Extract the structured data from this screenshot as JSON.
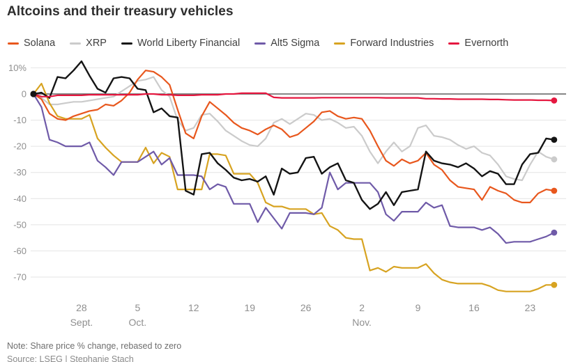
{
  "title": "Altcoins and their treasury vehicles",
  "note": "Note: Share price % change, rebased to zero",
  "source": "Source: LSEG | Stephanie Stach",
  "colors": {
    "grid": "#e4e4e4",
    "zero_line": "#5f5f5f",
    "axis_label": "#8f8f8f",
    "title_text": "#2d2d2d",
    "legend_text": "#3f3f3f",
    "note_text": "#6e6e6e"
  },
  "chart_data": {
    "type": "line",
    "title": "Altcoins and their treasury vehicles",
    "xlabel": "",
    "ylabel": "Share price % change, rebased to zero",
    "x_unit": "days (Sep 22 - Nov 26)",
    "grid": true,
    "legend_position": "top",
    "ylim": [
      -78,
      13
    ],
    "y_ticks": [
      {
        "value": 10,
        "label": "10%"
      },
      {
        "value": 0,
        "label": "0"
      },
      {
        "value": -10,
        "label": "-10"
      },
      {
        "value": -20,
        "label": "-20"
      },
      {
        "value": -30,
        "label": "-30"
      },
      {
        "value": -40,
        "label": "-40"
      },
      {
        "value": -50,
        "label": "-50"
      },
      {
        "value": -60,
        "label": "-60"
      },
      {
        "value": -70,
        "label": "-70"
      }
    ],
    "x_ticks": [
      {
        "pos": 6,
        "day": "28",
        "month": "Sept."
      },
      {
        "pos": 13,
        "day": "5",
        "month": "Oct."
      },
      {
        "pos": 20,
        "day": "12",
        "month": ""
      },
      {
        "pos": 27,
        "day": "19",
        "month": ""
      },
      {
        "pos": 34,
        "day": "26",
        "month": ""
      },
      {
        "pos": 41,
        "day": "2",
        "month": "Nov."
      },
      {
        "pos": 48,
        "day": "9",
        "month": ""
      },
      {
        "pos": 55,
        "day": "16",
        "month": ""
      },
      {
        "pos": 62,
        "day": "23",
        "month": ""
      }
    ],
    "series": [
      {
        "name": "Solana",
        "color": "#e8571d",
        "width": 2.2,
        "values": [
          0,
          -2,
          -7.5,
          -9.5,
          -10,
          -8.5,
          -7.5,
          -6.5,
          -6,
          -4,
          -4.5,
          -2.5,
          0.5,
          5.5,
          9,
          8.5,
          6.5,
          3.5,
          -6,
          -15,
          -17,
          -8.5,
          -3,
          -5.5,
          -8,
          -11,
          -13,
          -14,
          -15.5,
          -13.5,
          -12,
          -13.5,
          -16.5,
          -15.5,
          -13,
          -10.5,
          -7,
          -6.5,
          -8.5,
          -9.5,
          -9,
          -9.5,
          -14,
          -20,
          -25.5,
          -27.5,
          -25,
          -26.5,
          -25.5,
          -22.5,
          -27,
          -29,
          -33,
          -35.5,
          -36,
          -36.5,
          -40.5,
          -35.5,
          -37,
          -38,
          -40.5,
          -41.5,
          -41.5,
          -38,
          -36.5,
          -37
        ]
      },
      {
        "name": "XRP",
        "color": "#cbcbcb",
        "width": 2.2,
        "values": [
          0,
          -1.5,
          -4,
          -4,
          -3.5,
          -3,
          -3,
          -2.5,
          -2,
          -1.5,
          -1,
          1,
          3,
          5,
          5.5,
          6.5,
          1.5,
          -1,
          -10,
          -14,
          -13,
          -8,
          -7.5,
          -10.5,
          -14,
          -16,
          -18,
          -19.5,
          -20,
          -17,
          -11,
          -9.5,
          -11.5,
          -9.5,
          -7.5,
          -8,
          -10,
          -9.5,
          -11,
          -13,
          -12.5,
          -16,
          -22,
          -26.5,
          -22,
          -18.5,
          -22,
          -20,
          -13,
          -12,
          -16,
          -16.5,
          -17.5,
          -19.5,
          -21,
          -20,
          -22.5,
          -23.5,
          -27,
          -31.5,
          -32.5,
          -33,
          -27,
          -22,
          -24,
          -25
        ]
      },
      {
        "name": "World Liberty Financial",
        "color": "#141414",
        "width": 2.4,
        "values": [
          0,
          0.5,
          -1.5,
          6.5,
          6,
          9,
          12.5,
          7,
          2,
          0.5,
          6,
          6.5,
          6,
          2,
          1.5,
          -7,
          -5.5,
          -8.5,
          -9,
          -37,
          -38.5,
          -23,
          -22.5,
          -26.5,
          -29,
          -32,
          -33,
          -32.5,
          -33.5,
          -31.5,
          -38.5,
          -28.5,
          -30.5,
          -30,
          -24.5,
          -24,
          -30.5,
          -28,
          -26.5,
          -33,
          -34,
          -40.5,
          -44,
          -42,
          -37.5,
          -42.5,
          -37.5,
          -37,
          -36.5,
          -22,
          -25.5,
          -26.5,
          -27,
          -28,
          -26.5,
          -28.5,
          -31.5,
          -29.5,
          -30.5,
          -34.5,
          -34.5,
          -27,
          -23,
          -22.5,
          -17,
          -17.5
        ]
      },
      {
        "name": "Alt5 Sigma",
        "color": "#6f5aa8",
        "width": 2.2,
        "values": [
          0,
          -5,
          -17.5,
          -18.5,
          -20,
          -20,
          -20,
          -18.5,
          -25.5,
          -28,
          -31,
          -26,
          -26,
          -26,
          -24,
          -22,
          -27,
          -24.5,
          -31,
          -31,
          -31,
          -31.5,
          -36.5,
          -34.5,
          -35.5,
          -42,
          -42,
          -42,
          -49,
          -43.5,
          -47.5,
          -51.5,
          -45.5,
          -45.5,
          -45.5,
          -46,
          -43.5,
          -30,
          -36.5,
          -34,
          -34,
          -34,
          -34,
          -37.5,
          -46,
          -48.5,
          -45,
          -45,
          -45,
          -41.5,
          -43.5,
          -42.5,
          -50.5,
          -51,
          -51,
          -51,
          -52,
          -51,
          -53.5,
          -57,
          -56.5,
          -56.5,
          -56.5,
          -55.5,
          -54.5,
          -53
        ]
      },
      {
        "name": "Forward Industries",
        "color": "#d7a321",
        "width": 2.2,
        "values": [
          0,
          4,
          -3.5,
          -8.5,
          -9.5,
          -9.5,
          -9.5,
          -8,
          -17,
          -20.5,
          -23.5,
          -26,
          -26,
          -26,
          -20.5,
          -26.5,
          -22.5,
          -24,
          -36.5,
          -36.5,
          -36.5,
          -36.5,
          -23,
          -23,
          -23.5,
          -30.5,
          -30.5,
          -30.5,
          -34,
          -41.5,
          -43,
          -43,
          -44,
          -44,
          -44,
          -46,
          -45.5,
          -50.5,
          -52,
          -55,
          -55.5,
          -55.5,
          -67.5,
          -66.5,
          -68,
          -66,
          -66.5,
          -66.5,
          -66.5,
          -65,
          -68.5,
          -71,
          -72,
          -72.5,
          -72.5,
          -72.5,
          -72.5,
          -73.5,
          -75,
          -75.5,
          -75.5,
          -75.5,
          -75.5,
          -74.5,
          -73,
          -73
        ]
      },
      {
        "name": "Evernorth",
        "color": "#e5173f",
        "width": 2.2,
        "values": [
          0,
          -1,
          -1,
          -0.5,
          -0.5,
          -0.5,
          -0.5,
          -0.3,
          -0.3,
          -0.3,
          -0.3,
          -0.3,
          -0.3,
          -0.3,
          0,
          0,
          -0.3,
          -0.3,
          -0.5,
          -0.5,
          -0.5,
          -0.3,
          -0.3,
          -0.3,
          0,
          0,
          0.3,
          0.3,
          0.3,
          0.3,
          -1.3,
          -1.5,
          -1.5,
          -1.5,
          -1.5,
          -1.5,
          -1.4,
          -1.4,
          -1.4,
          -1.4,
          -1.4,
          -1.4,
          -1.4,
          -1.4,
          -1.5,
          -1.5,
          -1.5,
          -1.5,
          -1.5,
          -1.8,
          -1.8,
          -1.9,
          -1.9,
          -2,
          -2,
          -2,
          -2,
          -2.1,
          -2.1,
          -2.2,
          -2.3,
          -2.3,
          -2.3,
          -2.4,
          -2.4,
          -2.5
        ]
      }
    ]
  }
}
